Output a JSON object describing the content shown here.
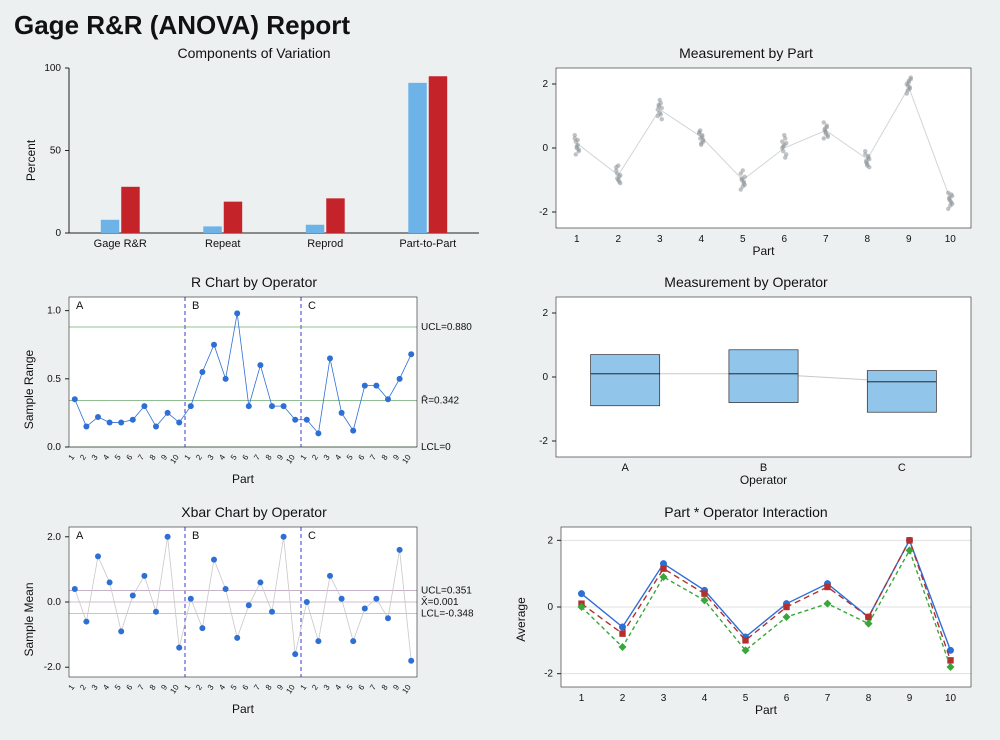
{
  "report_title": "Gage R&R (ANOVA) Report",
  "background_color": "#edf0f1",
  "plot_background": "#ffffff",
  "axis_color": "#222222",
  "grid_color": "#d5d5d5",
  "title_fontsize": 14,
  "axis_label_fontsize": 12,
  "tick_fontsize": 10,
  "components": {
    "title": "Components of Variation",
    "ylabel": "Percent",
    "ylim": [
      0,
      100
    ],
    "ytick_step": 50,
    "categories": [
      "Gage R&R",
      "Repeat",
      "Reprod",
      "Part-to-Part"
    ],
    "series1": {
      "color": "#6db3e8",
      "values": [
        8,
        4,
        5,
        91
      ]
    },
    "series2": {
      "color": "#c4232a",
      "values": [
        28,
        19,
        21,
        95
      ]
    },
    "bar_gap": 0.02,
    "bar_width": 0.36
  },
  "meas_by_part": {
    "title": "Measurement by Part",
    "xlabel": "Part",
    "xvals": [
      1,
      2,
      3,
      4,
      5,
      6,
      7,
      8,
      9,
      10
    ],
    "ylim": [
      -2.5,
      2.5
    ],
    "yticks": [
      -2,
      0,
      2
    ],
    "point_color": "#8a9195",
    "point_radius": 2.2,
    "point_opacity": 0.55,
    "line_color": "#d0d5d8",
    "means": [
      0.15,
      -0.85,
      1.2,
      0.35,
      -1.0,
      0.0,
      0.55,
      -0.35,
      1.9,
      -1.6
    ],
    "clouds": [
      [
        0.4,
        0.2,
        0.0,
        0.1,
        -0.1,
        0.3,
        -0.2,
        0.05,
        0.25,
        -0.05
      ],
      [
        -0.6,
        -0.8,
        -1.0,
        -0.9,
        -1.1,
        -0.7,
        -0.95,
        -0.55,
        -1.05,
        -0.85
      ],
      [
        1.0,
        1.3,
        1.1,
        1.4,
        0.9,
        1.2,
        1.35,
        1.5,
        1.05,
        1.25
      ],
      [
        0.5,
        0.3,
        0.1,
        0.4,
        0.2,
        0.45,
        0.55,
        0.15,
        0.35,
        0.25
      ],
      [
        -0.8,
        -1.0,
        -1.2,
        -1.1,
        -0.9,
        -1.3,
        -0.95,
        -0.7,
        -1.05,
        -1.15
      ],
      [
        0.2,
        -0.1,
        0.1,
        0.3,
        -0.2,
        0.0,
        0.05,
        0.4,
        -0.3,
        0.15
      ],
      [
        0.3,
        0.6,
        0.5,
        0.7,
        0.4,
        0.8,
        0.55,
        0.45,
        0.65,
        0.35
      ],
      [
        -0.2,
        -0.4,
        -0.5,
        -0.3,
        -0.6,
        -0.1,
        -0.45,
        -0.55,
        -0.25,
        -0.35
      ],
      [
        2.0,
        1.8,
        2.1,
        1.9,
        2.2,
        1.7,
        1.95,
        2.05,
        1.85,
        2.15
      ],
      [
        -1.4,
        -1.6,
        -1.8,
        -1.7,
        -1.5,
        -1.9,
        -1.55,
        -1.65,
        -1.45,
        -1.75
      ]
    ]
  },
  "r_chart": {
    "title": "R Chart by Operator",
    "ylabel": "Sample Range",
    "xlabel": "Part",
    "operators": [
      "A",
      "B",
      "C"
    ],
    "parts": [
      1,
      2,
      3,
      4,
      5,
      6,
      7,
      8,
      9,
      10
    ],
    "ylim": [
      0,
      1.1
    ],
    "yticks": [
      0.0,
      0.5,
      1.0
    ],
    "point_color": "#2e6fd4",
    "line_color": "#2e6fd4",
    "limit_line_color": "#6eaa6e",
    "ucl": 0.88,
    "rbar": 0.342,
    "lcl": 0,
    "ucl_label": "UCL=0.880",
    "rbar_label": "R̄=0.342",
    "lcl_label": "LCL=0",
    "divider_color": "#3a3ad4",
    "divider_dash": "4,3",
    "values": {
      "A": [
        0.35,
        0.15,
        0.22,
        0.18,
        0.18,
        0.2,
        0.3,
        0.15,
        0.25,
        0.18
      ],
      "B": [
        0.3,
        0.55,
        0.75,
        0.5,
        0.98,
        0.3,
        0.6,
        0.3,
        0.3,
        0.2
      ],
      "C": [
        0.2,
        0.1,
        0.65,
        0.25,
        0.12,
        0.45,
        0.45,
        0.35,
        0.5,
        0.68
      ]
    }
  },
  "meas_by_operator": {
    "title": "Measurement by Operator",
    "xlabel": "Operator",
    "operators": [
      "A",
      "B",
      "C"
    ],
    "ylim": [
      -2.5,
      2.5
    ],
    "yticks": [
      -2,
      0,
      2
    ],
    "box_color": "#92c5ea",
    "box_border": "#111111",
    "mean_line_color": "#c8c8c8",
    "boxes": {
      "A": {
        "q1": -0.9,
        "med": 0.1,
        "q3": 0.7
      },
      "B": {
        "q1": -0.8,
        "med": 0.1,
        "q3": 0.85
      },
      "C": {
        "q1": -1.1,
        "med": -0.15,
        "q3": 0.2
      }
    },
    "means": [
      0.1,
      0.1,
      -0.15
    ],
    "box_width": 0.5
  },
  "xbar_chart": {
    "title": "Xbar Chart by Operator",
    "ylabel": "Sample Mean",
    "xlabel": "Part",
    "operators": [
      "A",
      "B",
      "C"
    ],
    "parts": [
      1,
      2,
      3,
      4,
      5,
      6,
      7,
      8,
      9,
      10
    ],
    "ylim": [
      -2.3,
      2.3
    ],
    "yticks": [
      -2,
      0,
      2
    ],
    "point_color": "#2e6fd4",
    "line_color": "#c8c8c8",
    "limit_line_color": "#bfa8c0",
    "ucl": 0.351,
    "xbar": 0.001,
    "lcl": -0.348,
    "ucl_label": "UCL=0.351",
    "xbar_label": "X̄=0.001",
    "lcl_label": "LCL=-0.348",
    "divider_color": "#3a3ad4",
    "divider_dash": "4,3",
    "values": {
      "A": [
        0.4,
        -0.6,
        1.4,
        0.6,
        -0.9,
        0.2,
        0.8,
        -0.3,
        2.0,
        -1.4
      ],
      "B": [
        0.1,
        -0.8,
        1.3,
        0.4,
        -1.1,
        -0.1,
        0.6,
        -0.3,
        2.0,
        -1.6
      ],
      "C": [
        0.0,
        -1.2,
        0.8,
        0.1,
        -1.2,
        -0.2,
        0.1,
        -0.5,
        1.6,
        -1.8
      ]
    }
  },
  "interaction": {
    "title": "Part * Operator Interaction",
    "ylabel": "Average",
    "xlabel": "Part",
    "parts": [
      1,
      2,
      3,
      4,
      5,
      6,
      7,
      8,
      9,
      10
    ],
    "ylim": [
      -2.4,
      2.4
    ],
    "yticks": [
      -2,
      0,
      2
    ],
    "grid_color": "#e0e0e0",
    "series": {
      "A": {
        "color": "#2e6fd4",
        "marker": "circle",
        "dash": "",
        "values": [
          0.4,
          -0.6,
          1.3,
          0.5,
          -0.9,
          0.1,
          0.7,
          -0.3,
          2.0,
          -1.3
        ]
      },
      "B": {
        "color": "#b23030",
        "marker": "square",
        "dash": "6,4",
        "values": [
          0.1,
          -0.8,
          1.15,
          0.4,
          -1.0,
          0.0,
          0.6,
          -0.3,
          2.0,
          -1.6
        ]
      },
      "C": {
        "color": "#3aa63a",
        "marker": "diamond",
        "dash": "4,3",
        "values": [
          0.0,
          -1.2,
          0.9,
          0.2,
          -1.3,
          -0.3,
          0.1,
          -0.5,
          1.7,
          -1.8
        ]
      }
    }
  }
}
